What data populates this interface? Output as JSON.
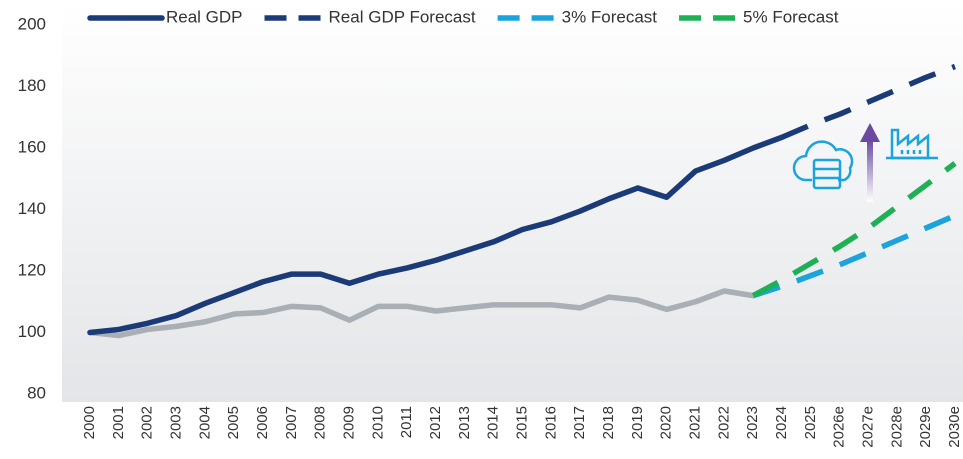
{
  "chart_data": {
    "type": "line",
    "categories": [
      "2000",
      "2001",
      "2002",
      "2003",
      "2004",
      "2005",
      "2006",
      "2007",
      "2008",
      "2009",
      "2010",
      "2011",
      "2012",
      "2013",
      "2014",
      "2015",
      "2016",
      "2017",
      "2018",
      "2019",
      "2020",
      "2021",
      "2022",
      "2023",
      "2024",
      "2025",
      "2026e",
      "2027e",
      "2028e",
      "2029e",
      "2030e"
    ],
    "series": [
      {
        "name": "Real GDP",
        "color": "#1b3a78",
        "dashed": false,
        "values": [
          100,
          101,
          103,
          105.5,
          109.5,
          113,
          116.5,
          119,
          119,
          116,
          119,
          121,
          123.5,
          126.5,
          129.5,
          133.5,
          136,
          139.5,
          143.5,
          147,
          144,
          152.5,
          156,
          160,
          163.5,
          null,
          null,
          null,
          null,
          null,
          null
        ]
      },
      {
        "name": "Real GDP Forecast",
        "color": "#1b3a78",
        "dashed": true,
        "values": [
          null,
          null,
          null,
          null,
          null,
          null,
          null,
          null,
          null,
          null,
          null,
          null,
          null,
          null,
          null,
          null,
          null,
          null,
          null,
          null,
          null,
          null,
          null,
          null,
          163.5,
          167.5,
          171,
          175,
          179,
          183,
          186.5
        ]
      },
      {
        "name": "3% Forecast",
        "color": "#1ba3dc",
        "dashed": true,
        "values": [
          null,
          null,
          null,
          null,
          null,
          null,
          null,
          null,
          null,
          null,
          null,
          null,
          null,
          null,
          null,
          null,
          null,
          null,
          null,
          null,
          null,
          null,
          null,
          112,
          115,
          118.5,
          122,
          126,
          130,
          134,
          138
        ]
      },
      {
        "name": "5% Forecast",
        "color": "#1db054",
        "dashed": true,
        "values": [
          null,
          null,
          null,
          null,
          null,
          null,
          null,
          null,
          null,
          null,
          null,
          null,
          null,
          null,
          null,
          null,
          null,
          null,
          null,
          null,
          null,
          null,
          null,
          112,
          117,
          122.5,
          128,
          134,
          141,
          148,
          155
        ]
      },
      {
        "color": "#a9afb5",
        "dashed": false,
        "values": [
          100,
          99,
          101,
          102,
          103.5,
          106,
          106.5,
          108.5,
          108,
          104,
          108.5,
          108.5,
          107,
          108,
          109,
          109,
          109,
          108,
          111.5,
          110.5,
          107.5,
          110,
          113.5,
          112,
          null,
          null,
          null,
          null,
          null,
          null,
          null
        ]
      }
    ],
    "ylim": [
      80,
      200
    ],
    "yticks": [
      80,
      100,
      120,
      140,
      160,
      180,
      200
    ],
    "legend": "top"
  }
}
